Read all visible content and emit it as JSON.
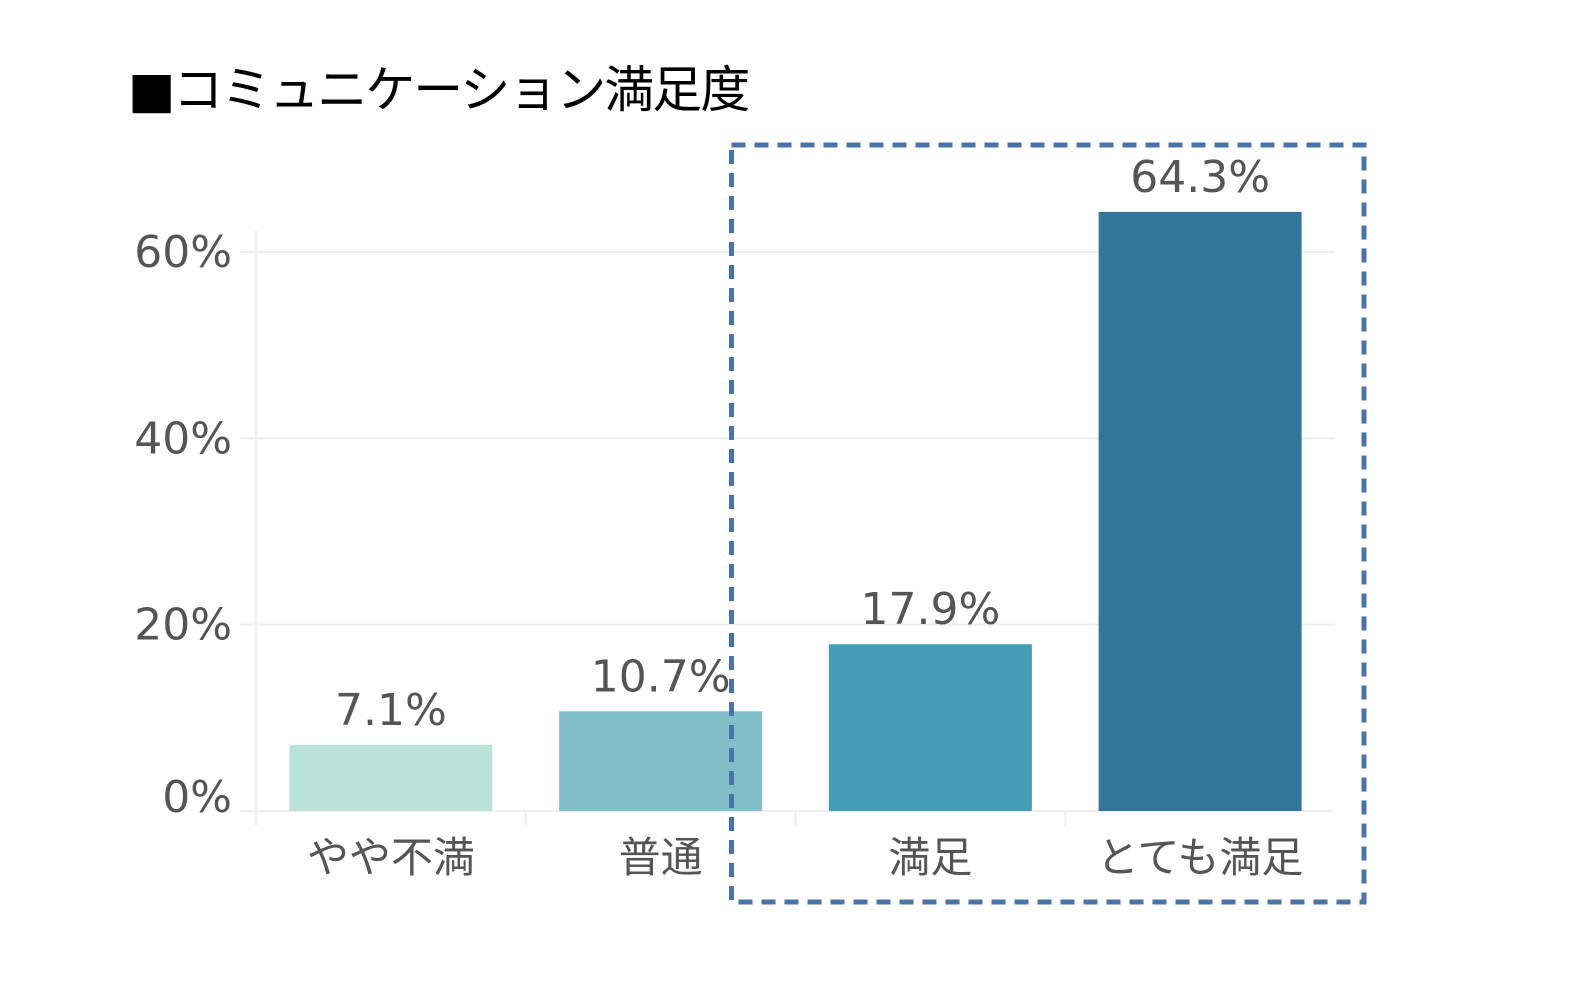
{
  "title": "■コミュニケーション満足度",
  "colors": {
    "bars": [
      "#bce3d8",
      "#82bfc8",
      "#449db6",
      "#33769a"
    ],
    "highlight_box": "#4a74a8",
    "grid": "#eeeeee",
    "text": "#555555"
  },
  "chart_data": {
    "type": "bar",
    "title": "■コミュニケーション満足度",
    "xlabel": "",
    "ylabel": "",
    "categories": [
      "やや不満",
      "普通",
      "満足",
      "とても満足"
    ],
    "values": [
      7.1,
      10.7,
      17.9,
      64.3
    ],
    "data_labels": [
      "7.1%",
      "10.7%",
      "17.9%",
      "64.3%"
    ],
    "yticks": [
      0,
      20,
      40,
      60
    ],
    "ytick_labels": [
      "0%",
      "20%",
      "40%",
      "60%"
    ],
    "ylim": [
      0,
      60
    ],
    "grid": true,
    "highlight": {
      "style": "dashed box",
      "categories": [
        "満足",
        "とても満足"
      ]
    }
  }
}
